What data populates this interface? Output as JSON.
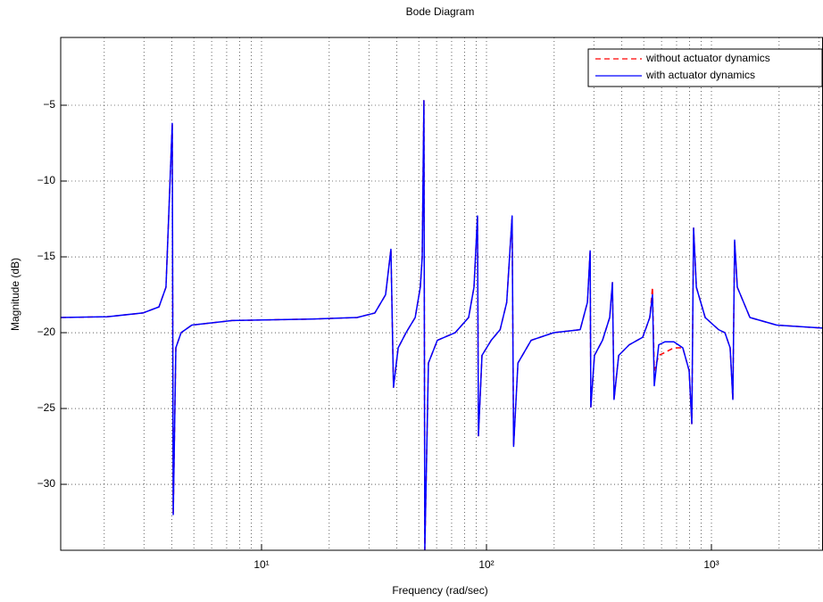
{
  "chart_data": {
    "type": "line",
    "title": "Bode Diagram",
    "x_label": "Frequency  (rad/sec)",
    "y_label": "Magnitude (dB)",
    "xscale": "log",
    "grid": true,
    "legend": "upper right",
    "xlim": [
      1.28,
      3133
    ],
    "ylim": [
      -34.35,
      -0.53
    ],
    "xticks": [
      {
        "value": 10,
        "label": "10¹"
      },
      {
        "value": 100,
        "label": "10²"
      },
      {
        "value": 1000,
        "label": "10³"
      }
    ],
    "yticks": [
      {
        "value": -30,
        "label": "−30"
      },
      {
        "value": -25,
        "label": "−25"
      },
      {
        "value": -20,
        "label": "−20"
      },
      {
        "value": -15,
        "label": "−15"
      },
      {
        "value": -10,
        "label": "−10"
      },
      {
        "value": -5,
        "label": "−5"
      }
    ],
    "x": [
      1.28,
      2.06,
      2.97,
      3.5,
      3.76,
      4.01,
      4.05,
      4.16,
      4.39,
      4.9,
      7.39,
      16.8,
      26.6,
      31.9,
      35.6,
      37.6,
      38.6,
      40.5,
      43.9,
      48.2,
      50.8,
      51.8,
      52.7,
      53.2,
      55.2,
      60.5,
      72.6,
      83.3,
      88.0,
      91.2,
      92.1,
      95.5,
      105,
      115,
      123,
      130,
      132,
      138,
      158,
      199,
      261,
      281,
      289,
      291,
      302,
      328,
      353,
      363,
      369,
      387,
      431,
      495,
      532,
      547,
      557,
      583,
      622,
      681,
      746,
      796,
      818,
      833,
      857,
      938,
      1076,
      1148,
      1211,
      1245,
      1268,
      1303,
      1483,
      1950,
      3133
    ],
    "series": [
      {
        "name": "without actuator dynamics",
        "color": "#ff0000",
        "linestyle": "dashed",
        "values": [
          -19.0,
          -18.95,
          -18.7,
          -18.3,
          -17.0,
          -6.2,
          -32.0,
          -21.0,
          -20.0,
          -19.5,
          -19.2,
          -19.1,
          -19.0,
          -18.7,
          -17.5,
          -14.5,
          -23.6,
          -21.0,
          -20.0,
          -19.0,
          -17.0,
          -15.0,
          -4.7,
          -34.3,
          -22.0,
          -20.5,
          -20.0,
          -19.0,
          -17.0,
          -12.3,
          -26.8,
          -21.5,
          -20.5,
          -19.8,
          -18.0,
          -12.3,
          -27.5,
          -22.0,
          -20.5,
          -20.0,
          -19.8,
          -18.0,
          -14.6,
          -24.9,
          -21.5,
          -20.5,
          -19.0,
          -16.7,
          -24.4,
          -21.5,
          -20.8,
          -20.3,
          -19.0,
          -17.0,
          -22.5,
          -21.5,
          -21.3,
          -21.0,
          -21.0,
          -22.5,
          -26.0,
          -13.1,
          -17.0,
          -19.0,
          -19.8,
          -20.0,
          -21.0,
          -24.4,
          -13.9,
          -17.0,
          -19.0,
          -19.5,
          -19.7
        ]
      },
      {
        "name": "with actuator dynamics",
        "color": "#0000ff",
        "linestyle": "solid",
        "values": [
          -19.0,
          -18.95,
          -18.7,
          -18.3,
          -17.0,
          -6.2,
          -32.0,
          -21.0,
          -20.0,
          -19.5,
          -19.2,
          -19.1,
          -19.0,
          -18.7,
          -17.5,
          -14.5,
          -23.6,
          -21.0,
          -20.0,
          -19.0,
          -17.0,
          -15.0,
          -4.7,
          -34.3,
          -22.0,
          -20.5,
          -20.0,
          -19.0,
          -17.0,
          -12.3,
          -26.8,
          -21.5,
          -20.5,
          -19.8,
          -18.0,
          -12.3,
          -27.5,
          -22.0,
          -20.5,
          -20.0,
          -19.8,
          -18.0,
          -14.6,
          -24.9,
          -21.5,
          -20.5,
          -19.0,
          -16.7,
          -24.4,
          -21.5,
          -20.8,
          -20.3,
          -19.0,
          -17.5,
          -23.5,
          -20.8,
          -20.6,
          -20.6,
          -21.0,
          -22.5,
          -26.0,
          -13.1,
          -17.0,
          -19.0,
          -19.8,
          -20.0,
          -21.0,
          -24.4,
          -13.9,
          -17.0,
          -19.0,
          -19.5,
          -19.7
        ]
      }
    ]
  }
}
